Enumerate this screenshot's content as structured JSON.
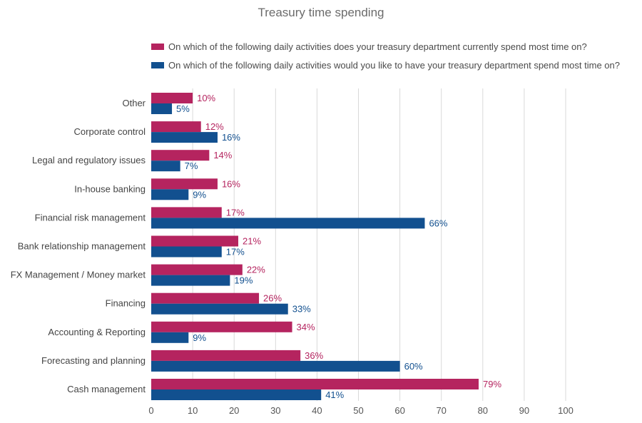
{
  "chart_data": {
    "type": "bar",
    "orientation": "horizontal",
    "title": "Treasury time spending",
    "categories": [
      "Other",
      "Corporate control",
      "Legal and regulatory issues",
      "In-house banking",
      "Financial risk management",
      "Bank relationship management",
      "FX Management / Money market",
      "Financing",
      "Accounting & Reporting",
      "Forecasting and planning",
      "Cash management"
    ],
    "series": [
      {
        "name": "On which of the following daily activities does your treasury department currently spend most time on?",
        "color": "#b5245f",
        "values": [
          10,
          12,
          14,
          16,
          17,
          21,
          22,
          26,
          34,
          36,
          79
        ],
        "labels": [
          "10%",
          "12%",
          "14%",
          "16%",
          "17%",
          "21%",
          "22%",
          "26%",
          "34%",
          "36%",
          "79%"
        ]
      },
      {
        "name": "On which of the following daily activities would you like to have your treasury department spend most time on?",
        "color": "#12508f",
        "values": [
          5,
          16,
          7,
          9,
          66,
          17,
          19,
          33,
          9,
          60,
          41
        ],
        "labels": [
          "5%",
          "16%",
          "7%",
          "9%",
          "66%",
          "17%",
          "19%",
          "33%",
          "9%",
          "60%",
          "41%"
        ]
      }
    ],
    "xlim": [
      0,
      100
    ],
    "ticks": [
      "0",
      "10",
      "20",
      "30",
      "40",
      "50",
      "60",
      "70",
      "80",
      "90",
      "100"
    ],
    "grid": true,
    "legend_position": "top"
  }
}
